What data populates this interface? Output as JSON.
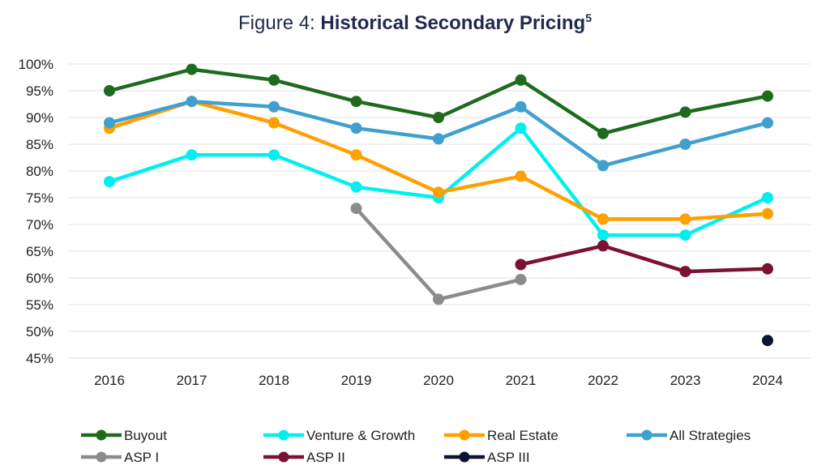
{
  "title": {
    "prefix": "Figure 4: ",
    "main": "Historical Secondary Pricing",
    "superscript": "5"
  },
  "chart_data": {
    "type": "line",
    "x": [
      "2016",
      "2017",
      "2018",
      "2019",
      "2020",
      "2021",
      "2022",
      "2023",
      "2024"
    ],
    "y_ticks": [
      "100%",
      "95%",
      "90%",
      "85%",
      "80%",
      "75%",
      "70%",
      "65%",
      "60%",
      "55%",
      "50%",
      "45%"
    ],
    "ylim": [
      45,
      100
    ],
    "grid": true,
    "legend_position": "bottom",
    "series": [
      {
        "name": "Buyout",
        "color": "#1e6b1e",
        "values": [
          95,
          99,
          97,
          93,
          90,
          97,
          87,
          91,
          94
        ]
      },
      {
        "name": "Venture & Growth",
        "color": "#00f0f0",
        "values": [
          78,
          83,
          83,
          77,
          75,
          88,
          68,
          68,
          75
        ]
      },
      {
        "name": "Real Estate",
        "color": "#ff9f00",
        "values": [
          88,
          93,
          89,
          83,
          76,
          79,
          71,
          71,
          72
        ]
      },
      {
        "name": "All Strategies",
        "color": "#3fa0d0",
        "values": [
          89,
          93,
          92,
          88,
          86,
          92,
          81,
          85,
          89
        ]
      },
      {
        "name": "ASP I",
        "color": "#8c8c8c",
        "values": [
          null,
          null,
          null,
          73,
          56,
          59.7,
          null,
          null,
          null
        ]
      },
      {
        "name": "ASP II",
        "color": "#7a1230",
        "values": [
          null,
          null,
          null,
          null,
          null,
          62.5,
          66,
          61.2,
          61.7
        ]
      },
      {
        "name": "ASP III",
        "color": "#0d1433",
        "values": [
          null,
          null,
          null,
          null,
          null,
          null,
          null,
          null,
          48.3
        ]
      }
    ]
  }
}
